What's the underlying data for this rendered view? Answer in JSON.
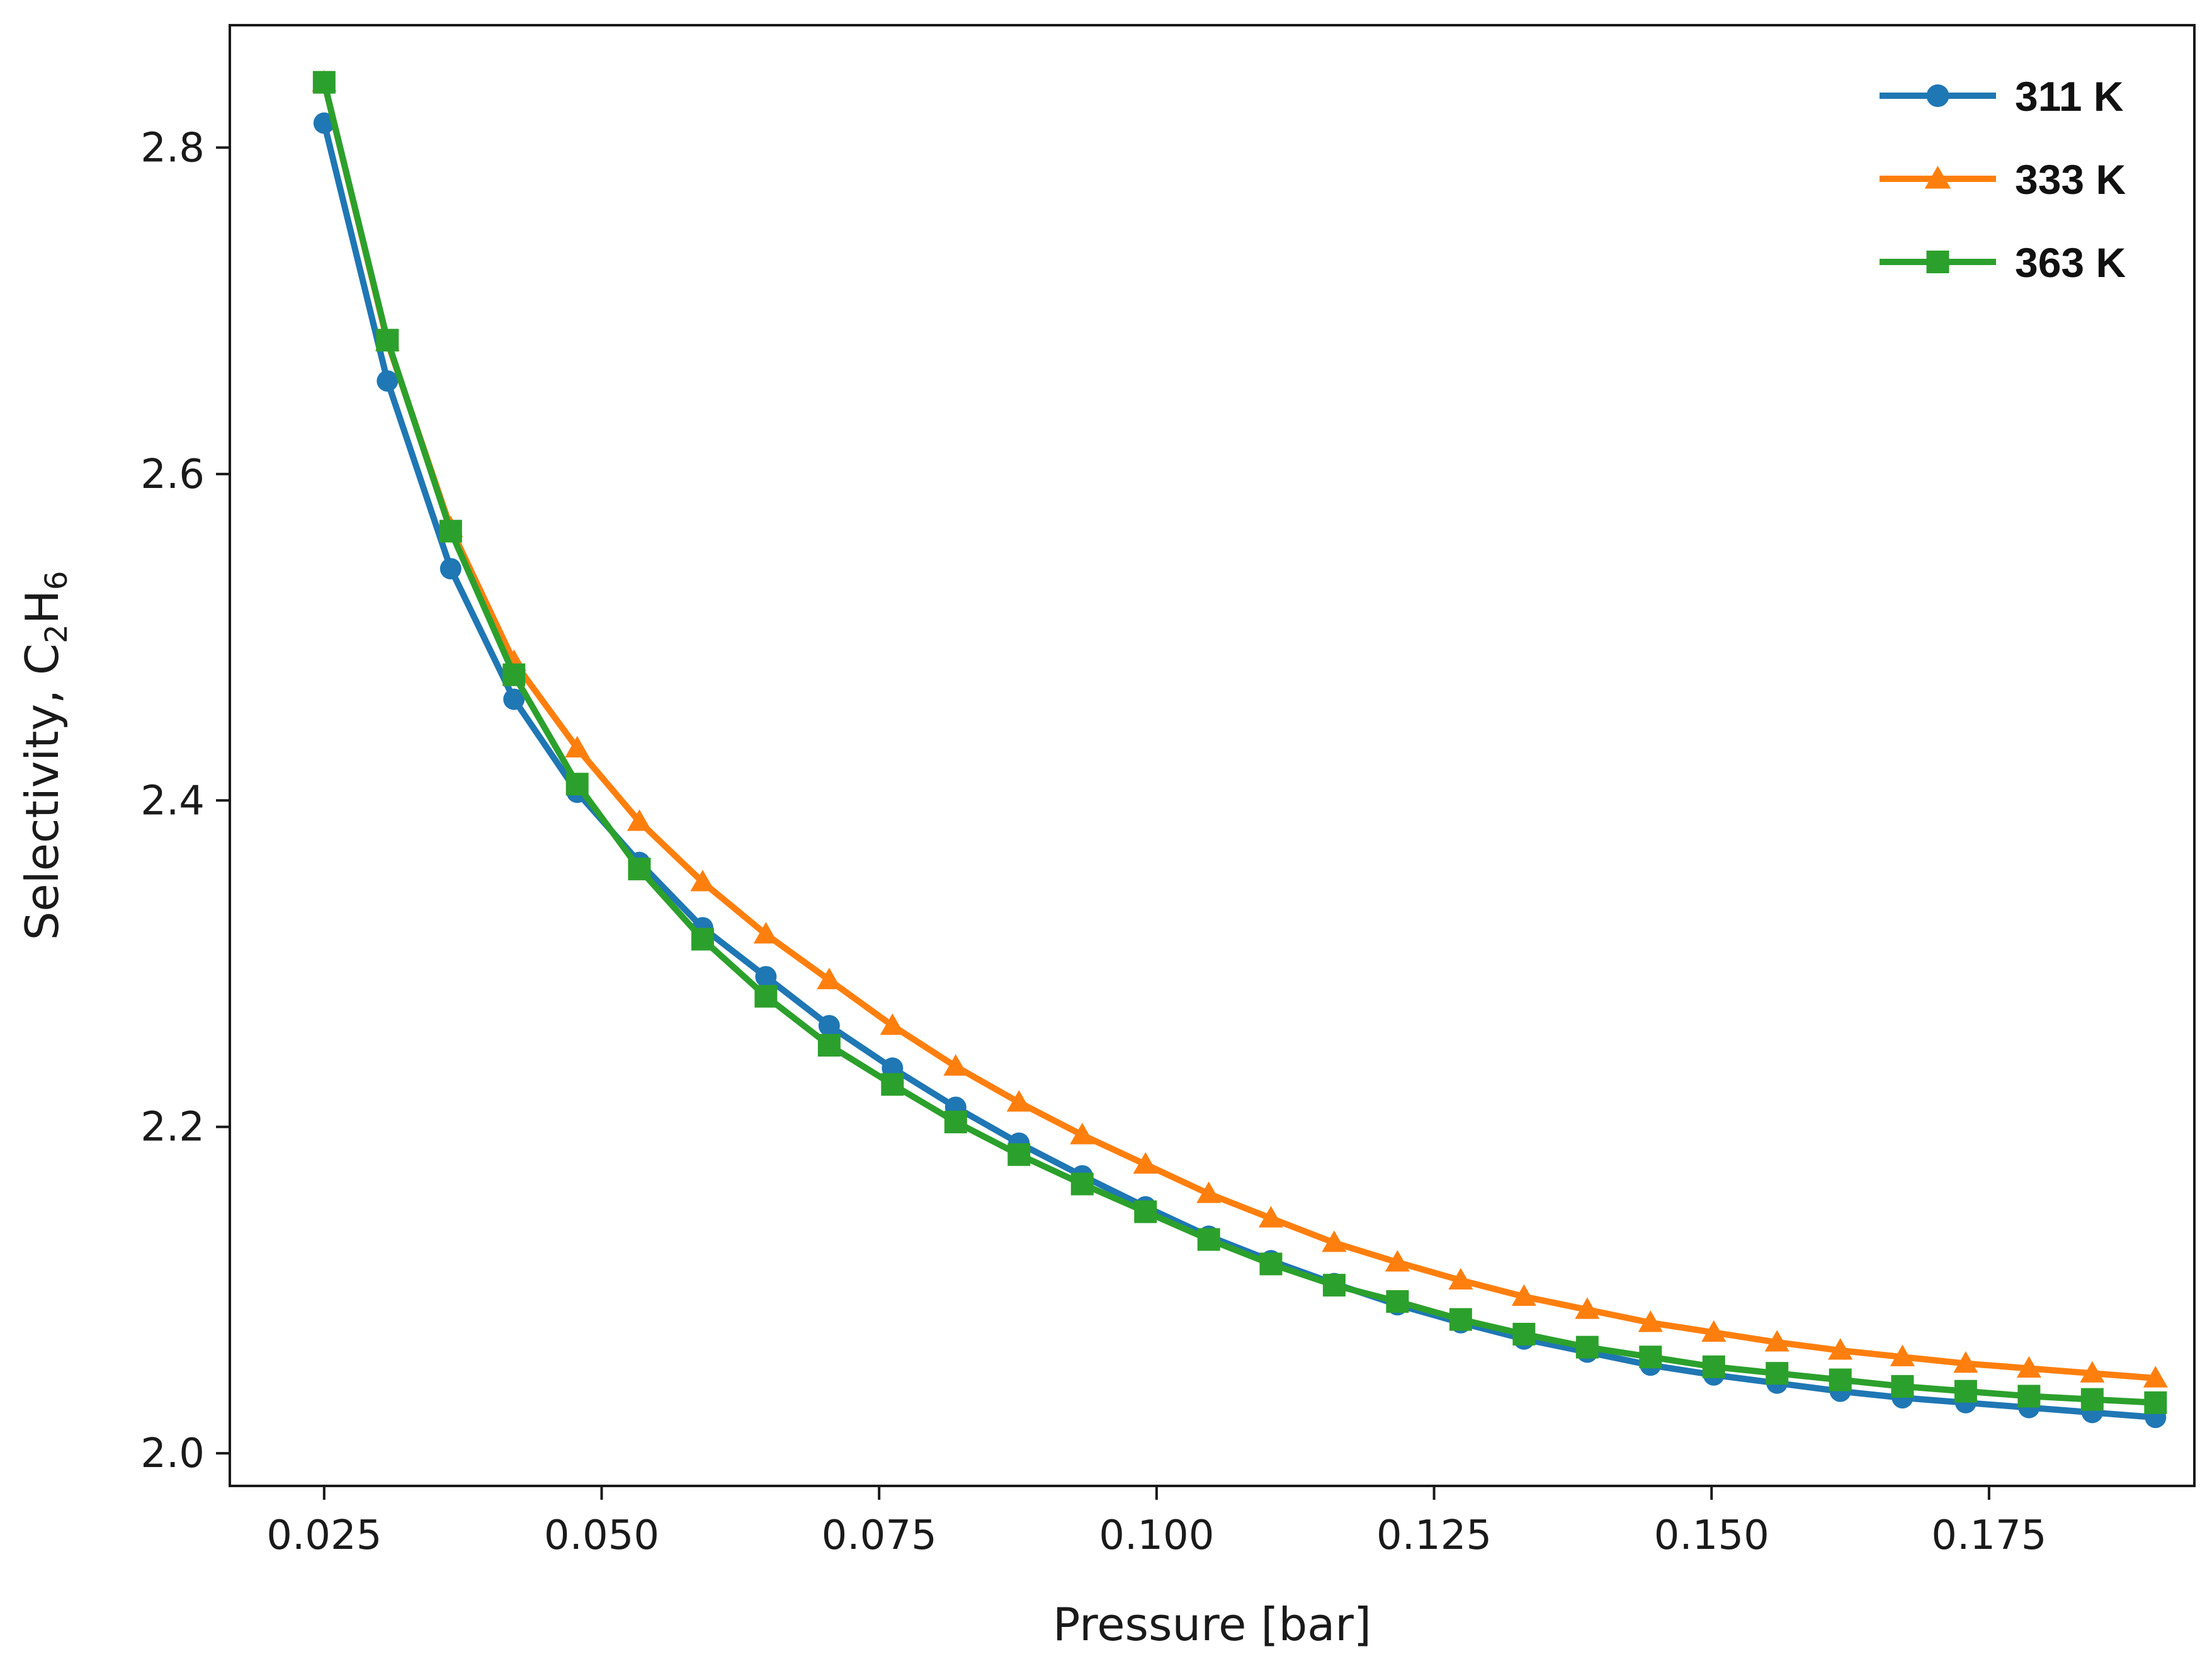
{
  "chart_data": {
    "type": "line",
    "xlabel": "Pressure [bar]",
    "ylabel": "Selectivity, C",
    "ylabel_sub": "2",
    "ylabel_mid": "H",
    "ylabel_sub2": "6",
    "xlim": [
      0.0165,
      0.1935
    ],
    "ylim": [
      1.98,
      2.875
    ],
    "xticks": [
      0.025,
      0.05,
      0.075,
      0.1,
      0.125,
      0.15,
      0.175
    ],
    "xtick_labels": [
      "0.025",
      "0.050",
      "0.075",
      "0.100",
      "0.125",
      "0.150",
      "0.175"
    ],
    "yticks": [
      2.0,
      2.2,
      2.4,
      2.6,
      2.8
    ],
    "ytick_labels": [
      "2.0",
      "2.2",
      "2.4",
      "2.6",
      "2.8"
    ],
    "grid": false,
    "legend_position": "top-right",
    "x": [
      0.025,
      0.0307,
      0.0364,
      0.0421,
      0.0478,
      0.0534,
      0.0591,
      0.0648,
      0.0705,
      0.0762,
      0.0819,
      0.0876,
      0.0933,
      0.099,
      0.1047,
      0.1103,
      0.116,
      0.1217,
      0.1274,
      0.1331,
      0.1388,
      0.1445,
      0.1502,
      0.1559,
      0.1616,
      0.1672,
      0.1729,
      0.1786,
      0.1843,
      0.19
    ],
    "series": [
      {
        "name": "311 K",
        "color": "#1f77b4",
        "marker": "circle",
        "values": [
          2.815,
          2.657,
          2.542,
          2.462,
          2.405,
          2.362,
          2.322,
          2.292,
          2.262,
          2.236,
          2.212,
          2.19,
          2.17,
          2.151,
          2.133,
          2.118,
          2.104,
          2.091,
          2.08,
          2.07,
          2.062,
          2.054,
          2.048,
          2.043,
          2.038,
          2.034,
          2.031,
          2.028,
          2.025,
          2.022
        ]
      },
      {
        "name": "333 K",
        "color": "#ff7f0e",
        "marker": "triangle",
        "values": [
          2.84,
          2.681,
          2.567,
          2.485,
          2.432,
          2.387,
          2.35,
          2.318,
          2.29,
          2.262,
          2.237,
          2.215,
          2.195,
          2.177,
          2.159,
          2.144,
          2.129,
          2.117,
          2.106,
          2.096,
          2.088,
          2.08,
          2.074,
          2.068,
          2.063,
          2.059,
          2.055,
          2.052,
          2.049,
          2.046
        ]
      },
      {
        "name": "363 K",
        "color": "#2ca02c",
        "marker": "square",
        "values": [
          2.84,
          2.682,
          2.565,
          2.477,
          2.41,
          2.358,
          2.315,
          2.28,
          2.25,
          2.226,
          2.203,
          2.183,
          2.165,
          2.148,
          2.131,
          2.116,
          2.103,
          2.093,
          2.082,
          2.073,
          2.065,
          2.059,
          2.053,
          2.049,
          2.045,
          2.041,
          2.038,
          2.035,
          2.033,
          2.031
        ]
      }
    ]
  }
}
